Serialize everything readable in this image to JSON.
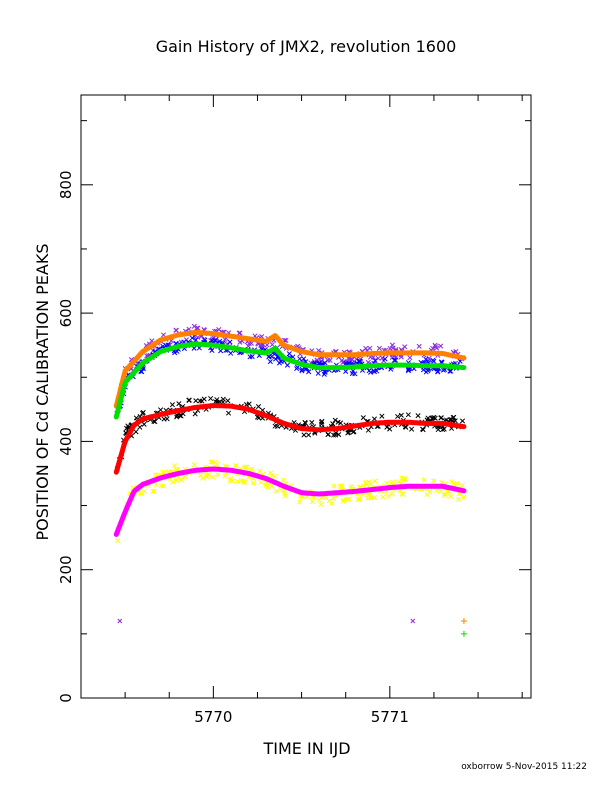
{
  "chart_data": {
    "type": "scatter",
    "title": "Gain History of JMX2, revolution 1600",
    "xlabel": "TIME IN IJD",
    "ylabel": "POSITION OF Cd CALIBRATION PEAKS",
    "xlim": [
      5769.25,
      5771.8
    ],
    "ylim": [
      0,
      940
    ],
    "x_ticks": [
      5770,
      5771
    ],
    "y_ticks": [
      0,
      200,
      400,
      600,
      800
    ],
    "x_tick_labels": [
      "5770",
      "5771"
    ],
    "y_tick_labels": [
      "0",
      "200",
      "400",
      "600",
      "800"
    ],
    "grid": false,
    "legend": "none",
    "series": [
      {
        "color": "#8a2be2",
        "marker": "x",
        "scatter": 12,
        "x": [
          5769.45,
          5769.5,
          5769.6,
          5769.7,
          5769.8,
          5769.9,
          5770.0,
          5770.1,
          5770.2,
          5770.3,
          5770.4,
          5770.5,
          5770.6,
          5770.7,
          5770.8,
          5770.9,
          5771.0,
          5771.1,
          5771.2,
          5771.3,
          5771.42
        ],
        "y": [
          455,
          505,
          535,
          555,
          565,
          570,
          565,
          560,
          555,
          552,
          548,
          535,
          530,
          528,
          530,
          535,
          538,
          540,
          540,
          538,
          530
        ]
      },
      {
        "color": "#0000ff",
        "marker": "x",
        "scatter": 10,
        "x": [
          5769.45,
          5769.5,
          5769.6,
          5769.7,
          5769.8,
          5769.9,
          5770.0,
          5770.1,
          5770.2,
          5770.3,
          5770.4,
          5770.5,
          5770.6,
          5770.7,
          5770.8,
          5770.9,
          5771.0,
          5771.1,
          5771.2,
          5771.3,
          5771.42
        ],
        "y": [
          440,
          490,
          520,
          540,
          550,
          555,
          550,
          545,
          540,
          535,
          530,
          520,
          515,
          512,
          515,
          518,
          520,
          520,
          518,
          518,
          515
        ]
      },
      {
        "color": "#ff8000",
        "marker": "line",
        "scatter": 0,
        "x": [
          5769.45,
          5769.5,
          5769.6,
          5769.7,
          5769.8,
          5769.9,
          5770.0,
          5770.1,
          5770.2,
          5770.3,
          5770.35,
          5770.4,
          5770.5,
          5770.6,
          5770.7,
          5770.8,
          5770.9,
          5771.0,
          5771.1,
          5771.2,
          5771.3,
          5771.42
        ],
        "y": [
          455,
          510,
          540,
          558,
          566,
          570,
          568,
          564,
          560,
          556,
          565,
          550,
          540,
          535,
          535,
          535,
          537,
          538,
          538,
          538,
          537,
          530
        ]
      },
      {
        "color": "#00e000",
        "marker": "line",
        "scatter": 0,
        "x": [
          5769.45,
          5769.5,
          5769.6,
          5769.7,
          5769.8,
          5769.9,
          5770.0,
          5770.1,
          5770.2,
          5770.3,
          5770.35,
          5770.4,
          5770.5,
          5770.6,
          5770.7,
          5770.8,
          5770.9,
          5771.0,
          5771.1,
          5771.2,
          5771.3,
          5771.42
        ],
        "y": [
          438,
          492,
          522,
          540,
          548,
          552,
          550,
          546,
          541,
          538,
          545,
          530,
          520,
          515,
          515,
          516,
          518,
          519,
          519,
          518,
          518,
          515
        ]
      },
      {
        "color": "#000000",
        "marker": "x",
        "scatter": 12,
        "x": [
          5769.45,
          5769.5,
          5769.6,
          5769.7,
          5769.8,
          5769.9,
          5770.0,
          5770.1,
          5770.2,
          5770.3,
          5770.4,
          5770.5,
          5770.6,
          5770.7,
          5770.8,
          5770.9,
          5771.0,
          5771.1,
          5771.2,
          5771.3,
          5771.42
        ],
        "y": [
          350,
          410,
          435,
          445,
          450,
          455,
          455,
          455,
          450,
          440,
          430,
          420,
          420,
          422,
          425,
          428,
          430,
          430,
          430,
          428,
          425
        ]
      },
      {
        "color": "#ff0000",
        "marker": "line",
        "scatter": 0,
        "x": [
          5769.45,
          5769.5,
          5769.55,
          5769.6,
          5769.7,
          5769.8,
          5769.9,
          5770.0,
          5770.1,
          5770.2,
          5770.3,
          5770.4,
          5770.5,
          5770.6,
          5770.7,
          5770.8,
          5770.9,
          5771.0,
          5771.1,
          5771.2,
          5771.3,
          5771.42
        ],
        "y": [
          352,
          400,
          425,
          435,
          442,
          448,
          453,
          456,
          455,
          450,
          440,
          428,
          420,
          418,
          420,
          424,
          428,
          430,
          430,
          428,
          428,
          423
        ]
      },
      {
        "color": "#ffff00",
        "marker": "x",
        "scatter": 14,
        "x": [
          5769.45,
          5769.5,
          5769.6,
          5769.7,
          5769.8,
          5769.9,
          5770.0,
          5770.1,
          5770.2,
          5770.3,
          5770.4,
          5770.5,
          5770.6,
          5770.7,
          5770.8,
          5770.9,
          5771.0,
          5771.1,
          5771.2,
          5771.3,
          5771.42
        ],
        "y": [
          250,
          300,
          330,
          340,
          350,
          355,
          355,
          352,
          348,
          340,
          330,
          318,
          315,
          318,
          322,
          325,
          328,
          330,
          330,
          328,
          322
        ]
      },
      {
        "color": "#ff00ff",
        "marker": "line",
        "scatter": 0,
        "x": [
          5769.45,
          5769.5,
          5769.55,
          5769.6,
          5769.7,
          5769.8,
          5769.9,
          5770.0,
          5770.1,
          5770.2,
          5770.3,
          5770.4,
          5770.5,
          5770.6,
          5770.7,
          5770.8,
          5770.9,
          5771.0,
          5771.1,
          5771.2,
          5771.3,
          5771.42
        ],
        "y": [
          255,
          290,
          322,
          333,
          343,
          350,
          355,
          357,
          355,
          350,
          342,
          330,
          320,
          318,
          320,
          322,
          325,
          328,
          330,
          330,
          330,
          323
        ]
      }
    ],
    "outliers": [
      {
        "x": 5769.47,
        "y": 120,
        "color": "#8a2be2",
        "marker": "x"
      },
      {
        "x": 5771.13,
        "y": 120,
        "color": "#8a2be2",
        "marker": "x"
      },
      {
        "x": 5771.42,
        "y": 120,
        "color": "#ff8000",
        "marker": "+"
      },
      {
        "x": 5771.42,
        "y": 100,
        "color": "#00e000",
        "marker": "+"
      }
    ]
  },
  "footer": {
    "stamp": "oxborrow  5-Nov-2015 11:22"
  }
}
